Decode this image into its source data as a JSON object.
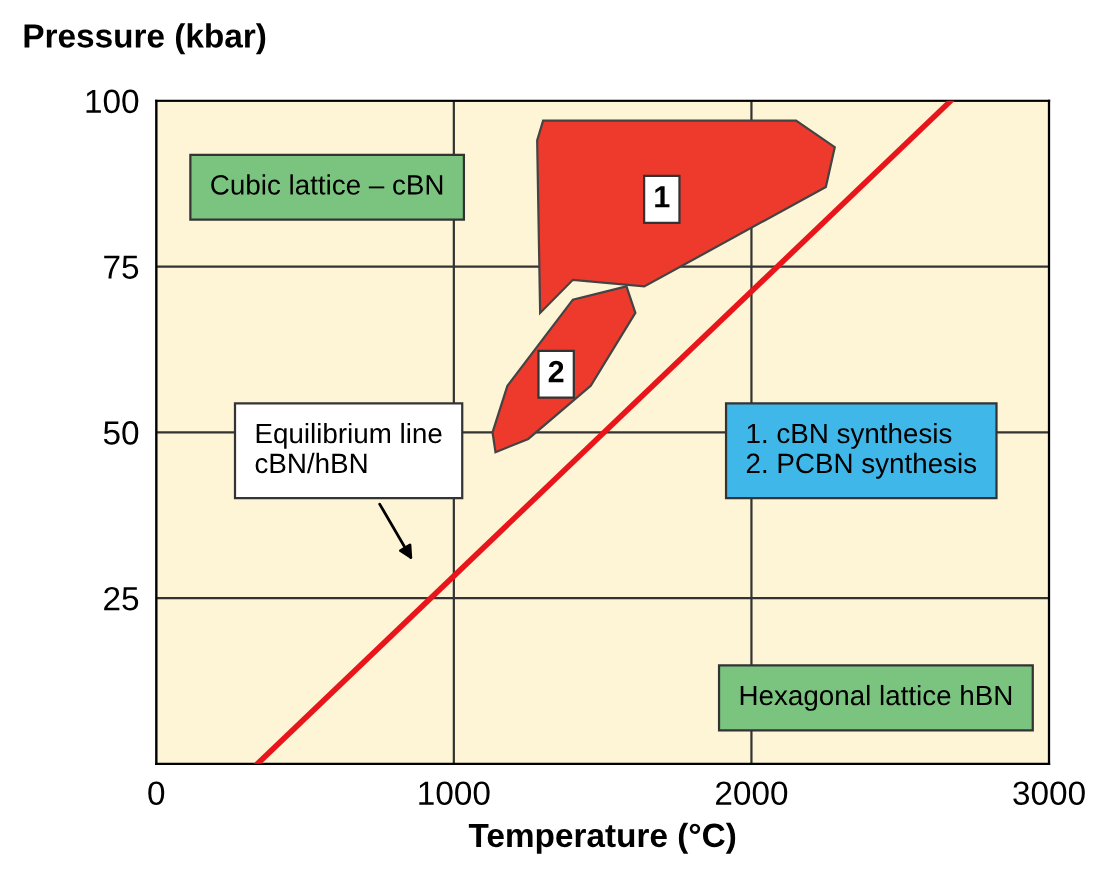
{
  "chart_data": {
    "type": "line",
    "xlabel": "Temperature (°C)",
    "ylabel": "Pressure (kbar)",
    "xlim": [
      0,
      3000
    ],
    "ylim": [
      0,
      100
    ],
    "xticks": [
      0,
      1000,
      2000,
      3000
    ],
    "yticks": [
      25,
      50,
      75,
      100
    ],
    "grid": true,
    "series": [
      {
        "color": "#e8161b",
        "x": [
          340,
          2670
        ],
        "values": [
          0,
          100
        ]
      },
      {
        "type": "area",
        "name": "1",
        "color": "#ee3a2c",
        "x": [
          1300,
          2150,
          2280,
          2250,
          1640,
          1400,
          1290,
          1280
        ],
        "values": [
          97,
          97,
          93,
          87,
          72,
          73,
          68,
          94
        ]
      },
      {
        "type": "area",
        "name": "2",
        "color": "#ee3a2c",
        "x": [
          1130,
          1180,
          1400,
          1580,
          1610,
          1460,
          1250,
          1140
        ],
        "values": [
          50,
          57,
          70,
          72,
          68,
          57,
          49,
          47
        ]
      }
    ],
    "annotations": [
      "Cubic lattice – cBN",
      "Hexagonal lattice hBN",
      "1. cBN synthesis\n2. PCBN synthesis",
      "Equilibrium line\ncBN/hBN"
    ]
  }
}
